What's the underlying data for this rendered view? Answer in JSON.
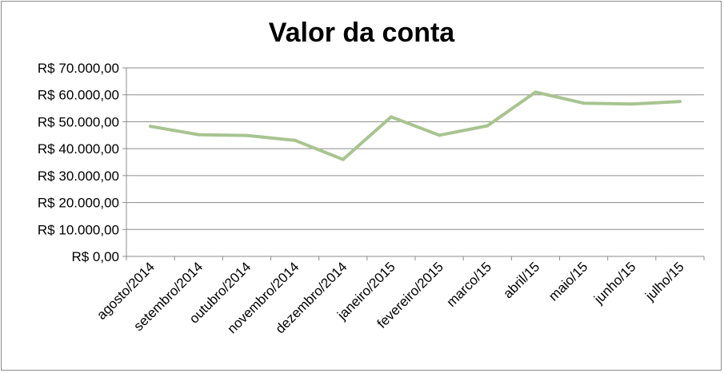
{
  "chart_data": {
    "type": "line",
    "title": "Valor da conta",
    "xlabel": "",
    "ylabel": "",
    "categories": [
      "agosto/2014",
      "setembro/2014",
      "outubro/2014",
      "novembro/2014",
      "dezembro/2014",
      "janeiro/2015",
      "fevereiro/2015",
      "marco/15",
      "abril/15",
      "maio/15",
      "junho/15",
      "julho/15"
    ],
    "series": [
      {
        "values": [
          48300,
          45200,
          44900,
          43100,
          36000,
          51800,
          45000,
          48500,
          61000,
          56900,
          56600,
          57500
        ],
        "color": "#a8c490"
      }
    ],
    "ylim": [
      0,
      70000
    ],
    "yticks": [
      0,
      10000,
      20000,
      30000,
      40000,
      50000,
      60000,
      70000
    ],
    "ytick_labels": [
      "R$ 0,00",
      "R$ 10.000,00",
      "R$ 20.000,00",
      "R$ 30.000,00",
      "R$ 40.000,00",
      "R$ 50.000,00",
      "R$ 60.000,00",
      "R$ 70.000,00"
    ],
    "grid": true,
    "legend": "none"
  }
}
